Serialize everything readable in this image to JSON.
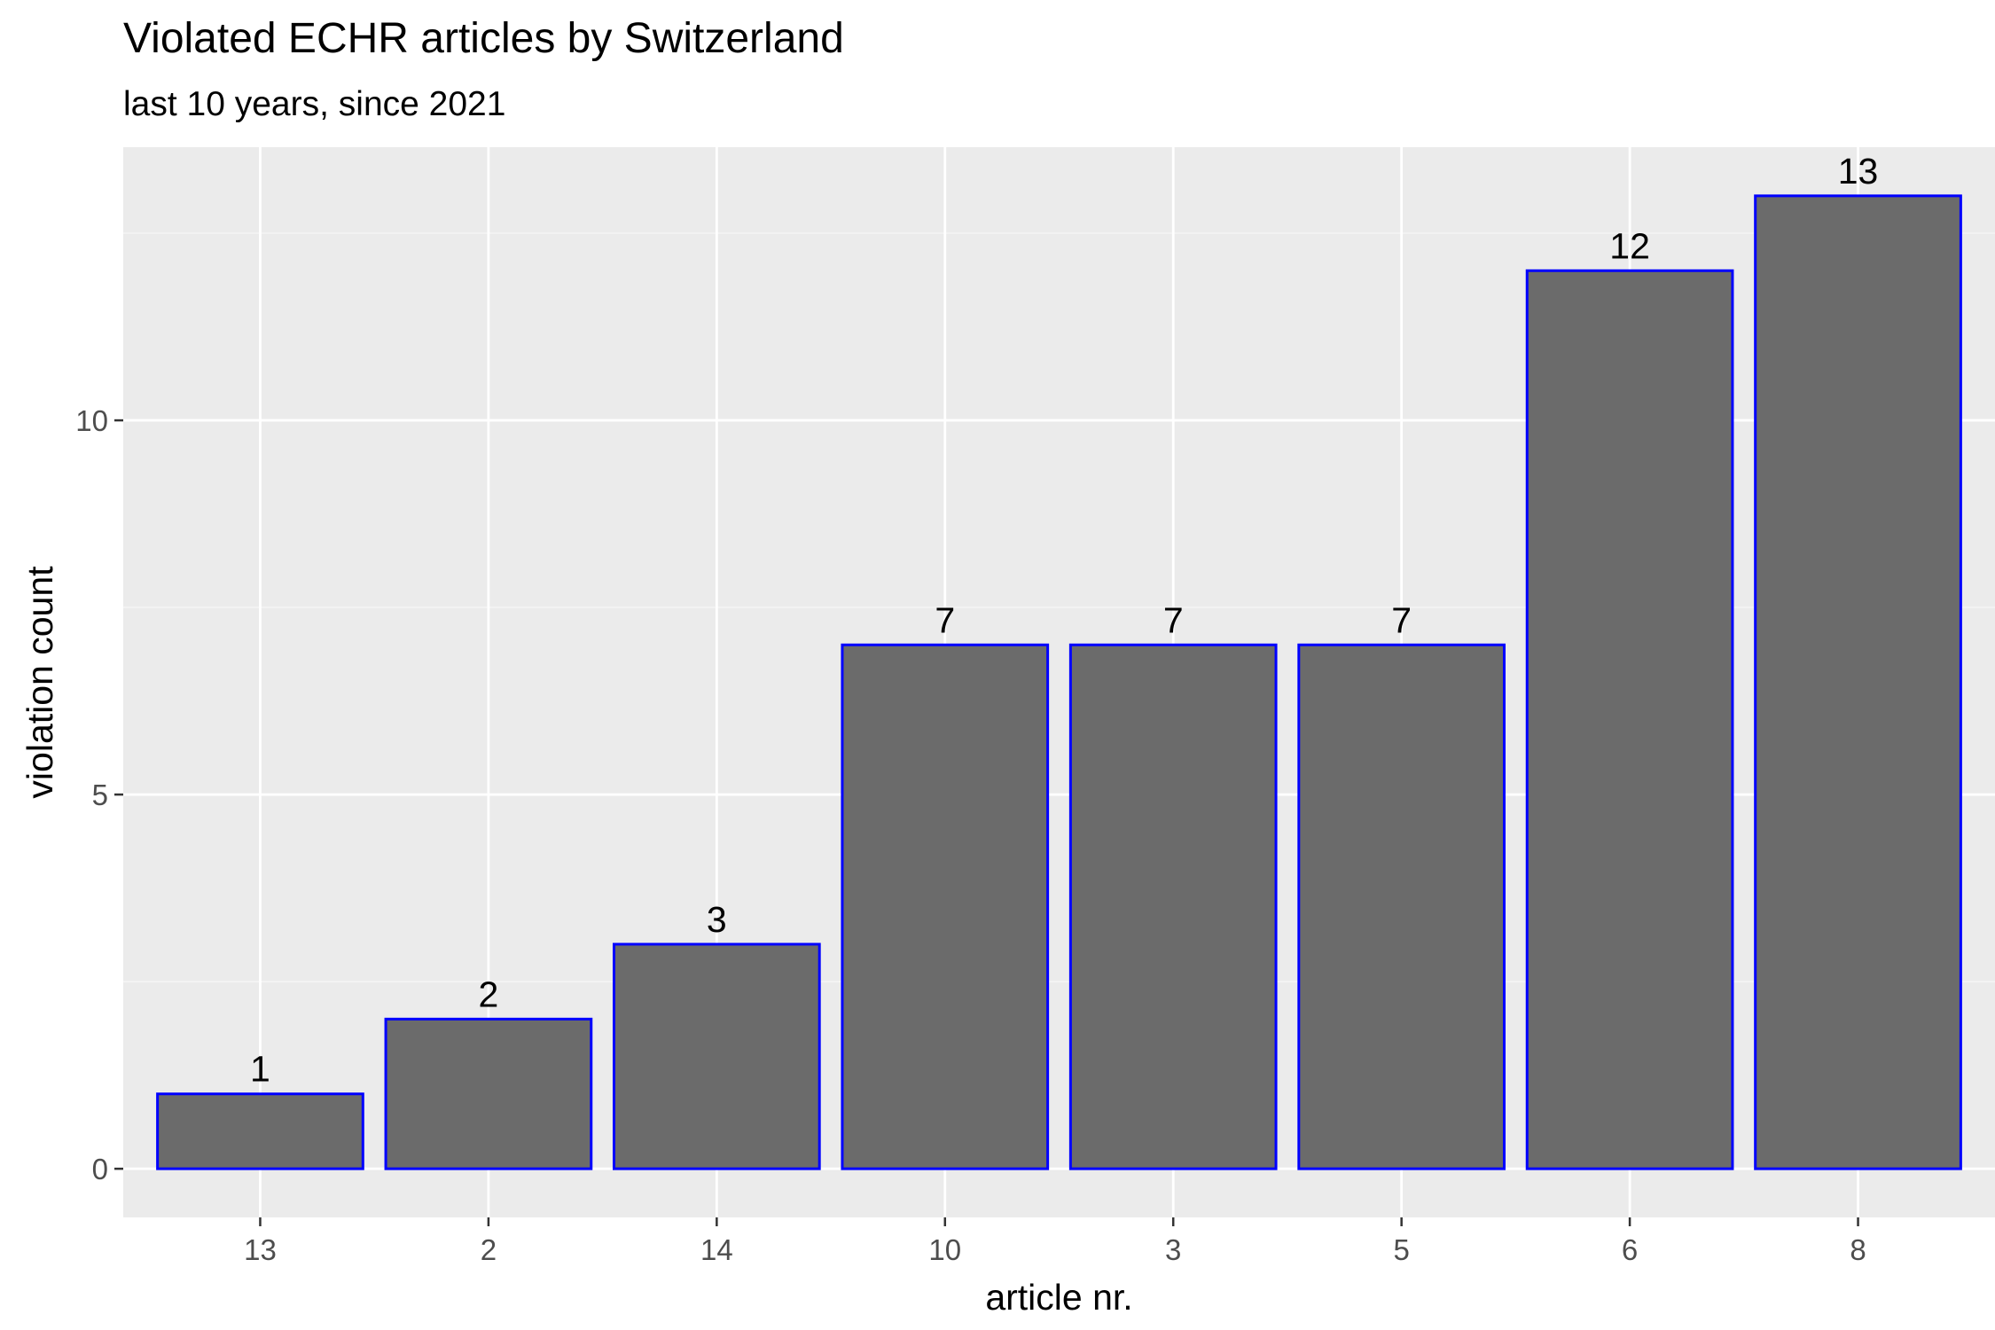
{
  "chart_data": {
    "type": "bar",
    "title": "Violated ECHR articles by Switzerland",
    "subtitle": "last 10 years, since 2021",
    "xlabel": "article nr.",
    "ylabel": "violation count",
    "categories": [
      "13",
      "2",
      "14",
      "10",
      "3",
      "5",
      "6",
      "8"
    ],
    "values": [
      1,
      2,
      3,
      7,
      7,
      7,
      12,
      13
    ],
    "data_labels": [
      "1",
      "2",
      "3",
      "7",
      "7",
      "7",
      "12",
      "13"
    ],
    "y_ticks": [
      0,
      5,
      10
    ],
    "y_tick_labels": [
      "0",
      "5",
      "10"
    ],
    "ylim": [
      -0.65,
      13.65
    ],
    "grid": true,
    "legend": "none",
    "colors": {
      "panel_background": "#EBEBEB",
      "grid_major": "#FFFFFF",
      "grid_minor": "#F5F5F5",
      "bar_fill": "#6B6B6B",
      "bar_outline": "#0000FF",
      "text": "#000000",
      "tick_text": "#4D4D4D",
      "tick_mark": "#333333"
    }
  }
}
